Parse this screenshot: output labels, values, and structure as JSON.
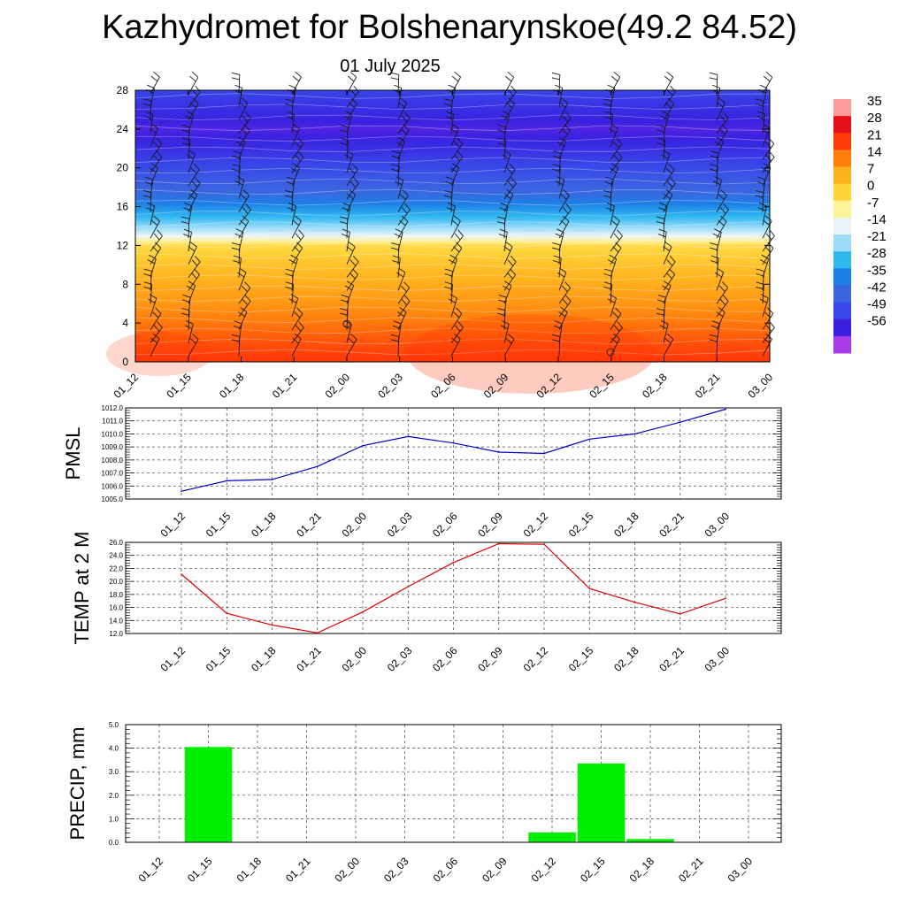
{
  "title": "Kazhydromet for Bolshenarynskoe(49.2 84.52)",
  "subtitle": "01 July 2025",
  "time_labels": [
    "01_12",
    "01_15",
    "01_18",
    "01_21",
    "02_00",
    "02_03",
    "02_06",
    "02_09",
    "02_12",
    "02_15",
    "02_18",
    "02_21",
    "03_00"
  ],
  "chart_data": [
    {
      "type": "heatmap",
      "title": "",
      "xlabel": "",
      "ylabel": "",
      "x": [
        "01_12",
        "01_15",
        "01_18",
        "01_21",
        "02_00",
        "02_03",
        "02_06",
        "02_09",
        "02_12",
        "02_15",
        "02_18",
        "02_21",
        "03_00"
      ],
      "yticks": [
        0,
        4,
        8,
        12,
        16,
        20,
        24,
        28
      ],
      "ylim": [
        0,
        28
      ],
      "colorbar": {
        "labels": [
          "35",
          "28",
          "21",
          "14",
          "7",
          "0",
          "-7",
          "-14",
          "-21",
          "-28",
          "-35",
          "-42",
          "-49",
          "-56"
        ],
        "values": [
          35,
          28,
          21,
          14,
          7,
          0,
          -7,
          -14,
          -21,
          -28,
          -35,
          -42,
          -49,
          -56
        ],
        "colors": [
          "#ff9b9b",
          "#e6101a",
          "#ff3a0a",
          "#ff7d0c",
          "#ffb01e",
          "#ffd43a",
          "#fff299",
          "#e8f4fa",
          "#9cdcf8",
          "#30b8f0",
          "#1d7fe6",
          "#3b66e0",
          "#3848e8",
          "#3b20e0",
          "#a83ae8"
        ]
      },
      "temperature_profile": {
        "heights": [
          0,
          2,
          4,
          6,
          8,
          10,
          12,
          12.6,
          13.5,
          14.5,
          16,
          17.5,
          20,
          22,
          24,
          26,
          28
        ],
        "values": [
          25,
          22,
          18,
          14,
          11,
          7,
          2,
          -6,
          -15,
          -22,
          -30,
          -38,
          -45,
          -50,
          -54,
          -50,
          -46
        ]
      },
      "wind_barbs": true
    },
    {
      "type": "line",
      "ylabel": "PMSL",
      "x": [
        "01_12",
        "01_15",
        "01_18",
        "01_21",
        "02_00",
        "02_03",
        "02_06",
        "02_09",
        "02_12",
        "02_15",
        "02_18",
        "02_21",
        "03_00"
      ],
      "series": [
        {
          "color": "#0000cc",
          "values": [
            1005.6,
            1006.4,
            1006.5,
            1007.5,
            1009.1,
            1009.8,
            1009.3,
            1008.6,
            1008.5,
            1009.6,
            1010.0,
            1010.9,
            1011.9
          ]
        }
      ],
      "ylim": [
        1005.0,
        1012.0
      ],
      "yticks": [
        "1005.0",
        "1006.0",
        "1007.0",
        "1008.0",
        "1009.0",
        "1010.0",
        "1011.0",
        "1012.0"
      ],
      "grid": true
    },
    {
      "type": "line",
      "ylabel": "TEMP at 2 M",
      "x": [
        "01_12",
        "01_15",
        "01_18",
        "01_21",
        "02_00",
        "02_03",
        "02_06",
        "02_09",
        "02_12",
        "02_15",
        "02_18",
        "02_21",
        "03_00"
      ],
      "series": [
        {
          "color": "#dd0000",
          "values": [
            21.1,
            15.1,
            13.3,
            12.1,
            15.3,
            19.2,
            22.9,
            25.8,
            25.7,
            18.9,
            16.8,
            15.0,
            17.4
          ]
        }
      ],
      "ylim": [
        12.0,
        26.0
      ],
      "yticks": [
        "12.0",
        "14.0",
        "16.0",
        "18.0",
        "20.0",
        "22.0",
        "24.0",
        "26.0"
      ],
      "grid": true
    },
    {
      "type": "bar",
      "ylabel": "PRECIP, mm",
      "categories": [
        "01_12",
        "01_15",
        "01_18",
        "01_21",
        "02_00",
        "02_03",
        "02_06",
        "02_09",
        "02_12",
        "02_15",
        "02_18",
        "02_21",
        "03_00"
      ],
      "series": [
        {
          "color": "#00ee00",
          "values": [
            0,
            4.05,
            0,
            0,
            0,
            0,
            0,
            0,
            0.42,
            3.35,
            0.14,
            0,
            0
          ]
        }
      ],
      "ylim": [
        0.0,
        5.0
      ],
      "yticks": [
        "0.0",
        "1.0",
        "2.0",
        "3.0",
        "4.0",
        "5.0"
      ],
      "grid": true
    }
  ]
}
